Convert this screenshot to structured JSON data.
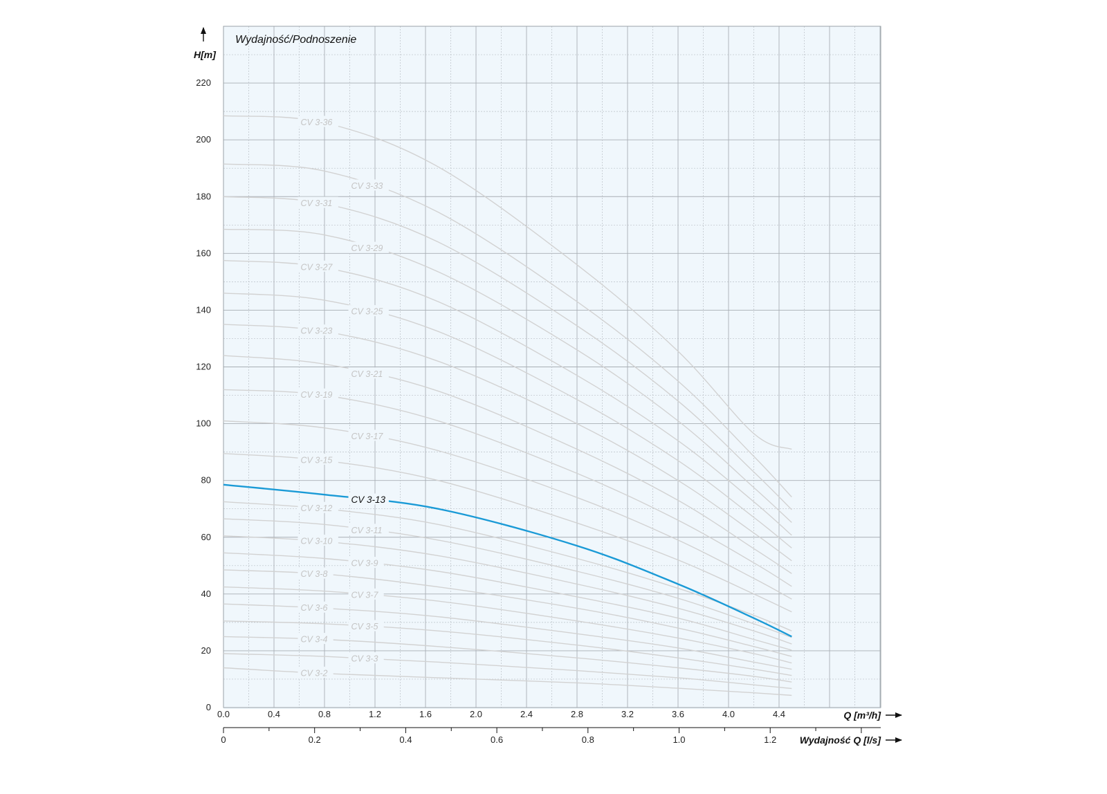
{
  "chart_data": {
    "type": "line",
    "title": "Wydajność/Podnoszenie",
    "ylabel": "H[m]",
    "xlabel": "Q [m³/h]",
    "xlabel2": "Wydajność Q [l/s]",
    "ylim": [
      0,
      240
    ],
    "xlim": [
      0,
      5.2
    ],
    "grid": true,
    "y_ticks": [
      "0",
      "20",
      "40",
      "60",
      "80",
      "100",
      "120",
      "140",
      "160",
      "180",
      "200",
      "220"
    ],
    "x_ticks": [
      "0.0",
      "0.4",
      "0.8",
      "1.2",
      "1.6",
      "2.0",
      "2.4",
      "2.8",
      "3.2",
      "3.6",
      "4.0",
      "4.4"
    ],
    "x2_ticks": [
      "0",
      "0.2",
      "0.4",
      "0.6",
      "0.8",
      "1.0",
      "1.2"
    ],
    "x": [
      0,
      0.8,
      1.7,
      2.8,
      3.6,
      4.2,
      4.5
    ],
    "highlight_color": "#1a9ad6",
    "grey_color": "#d2d2d2",
    "series": [
      {
        "name": "CV 3-2",
        "values": [
          14,
          12,
          10.5,
          8.7,
          6.8,
          5.2,
          4.3
        ],
        "label_x": 0.6
      },
      {
        "name": "CV 3-3",
        "values": [
          19,
          18,
          16,
          13,
          10.5,
          8,
          6.7
        ],
        "label_x": 1.0
      },
      {
        "name": "CV 3-4",
        "values": [
          25,
          24,
          21.5,
          17.5,
          14,
          11,
          9
        ],
        "label_x": 0.6
      },
      {
        "name": "CV 3-5",
        "values": [
          30.5,
          29.5,
          27,
          22,
          17.5,
          13.5,
          11.3
        ],
        "label_x": 1.0
      },
      {
        "name": "CV 3-6",
        "values": [
          36.5,
          35,
          32,
          26,
          21,
          16,
          13.5
        ],
        "label_x": 0.6
      },
      {
        "name": "CV 3-7",
        "values": [
          42.5,
          41,
          37.5,
          30.5,
          24.5,
          19,
          15.7
        ],
        "label_x": 1.0
      },
      {
        "name": "CV 3-8",
        "values": [
          48.5,
          47,
          42.5,
          35,
          28,
          21.5,
          18
        ],
        "label_x": 0.6
      },
      {
        "name": "CV 3-9",
        "values": [
          54.5,
          52.5,
          48,
          39,
          31.5,
          24,
          20.2
        ],
        "label_x": 1.0
      },
      {
        "name": "CV 3-10",
        "values": [
          60.5,
          58.5,
          53.5,
          43.5,
          35,
          27,
          22.4
        ],
        "label_x": 0.6
      },
      {
        "name": "CV 3-11",
        "values": [
          66.5,
          64.5,
          59,
          48,
          38.5,
          29.5,
          24.7
        ],
        "label_x": 1.0
      },
      {
        "name": "CV 3-12",
        "values": [
          72.5,
          70,
          64.5,
          52.5,
          42,
          32.5,
          27
        ],
        "label_x": 0.6
      },
      {
        "name": "CV 3-13",
        "values": [
          78.5,
          75,
          70,
          57,
          43.5,
          31.5,
          25
        ],
        "label_x": 1.0,
        "highlight": true
      },
      {
        "name": "CV 3-15",
        "values": [
          89.5,
          87,
          80,
          65,
          52,
          40,
          33.7
        ],
        "label_x": 0.6
      },
      {
        "name": "CV 3-17",
        "values": [
          101,
          98.5,
          90.5,
          74,
          59,
          45.5,
          38.2
        ],
        "label_x": 1.0
      },
      {
        "name": "CV 3-19",
        "values": [
          112,
          110,
          101,
          82.5,
          66,
          51,
          42.7
        ],
        "label_x": 0.6
      },
      {
        "name": "CV 3-21",
        "values": [
          124,
          121,
          111.5,
          91,
          73,
          56,
          47.2
        ],
        "label_x": 1.0
      },
      {
        "name": "CV 3-23",
        "values": [
          135,
          132.5,
          122,
          100,
          80,
          61.5,
          51.7
        ],
        "label_x": 0.6
      },
      {
        "name": "CV 3-25",
        "values": [
          146,
          143.5,
          132.5,
          108.5,
          87,
          67,
          56.2
        ],
        "label_x": 1.0
      },
      {
        "name": "CV 3-27",
        "values": [
          157.5,
          155,
          143,
          117,
          94,
          72.5,
          60.7
        ],
        "label_x": 0.6
      },
      {
        "name": "CV 3-29",
        "values": [
          168.5,
          166.5,
          153.5,
          126,
          101,
          77.5,
          65.2
        ],
        "label_x": 1.0
      },
      {
        "name": "CV 3-31",
        "values": [
          180,
          177.5,
          164,
          134.5,
          108,
          83,
          69.7
        ],
        "label_x": 0.6
      },
      {
        "name": "CV 3-33",
        "values": [
          191.5,
          189,
          174.5,
          143,
          115,
          88.5,
          74.2
        ],
        "label_x": 1.0
      },
      {
        "name": "CV 3-36",
        "values": [
          208.5,
          206,
          190.5,
          156,
          125.5,
          96.5,
          91
        ],
        "label_x": 0.6
      }
    ]
  }
}
